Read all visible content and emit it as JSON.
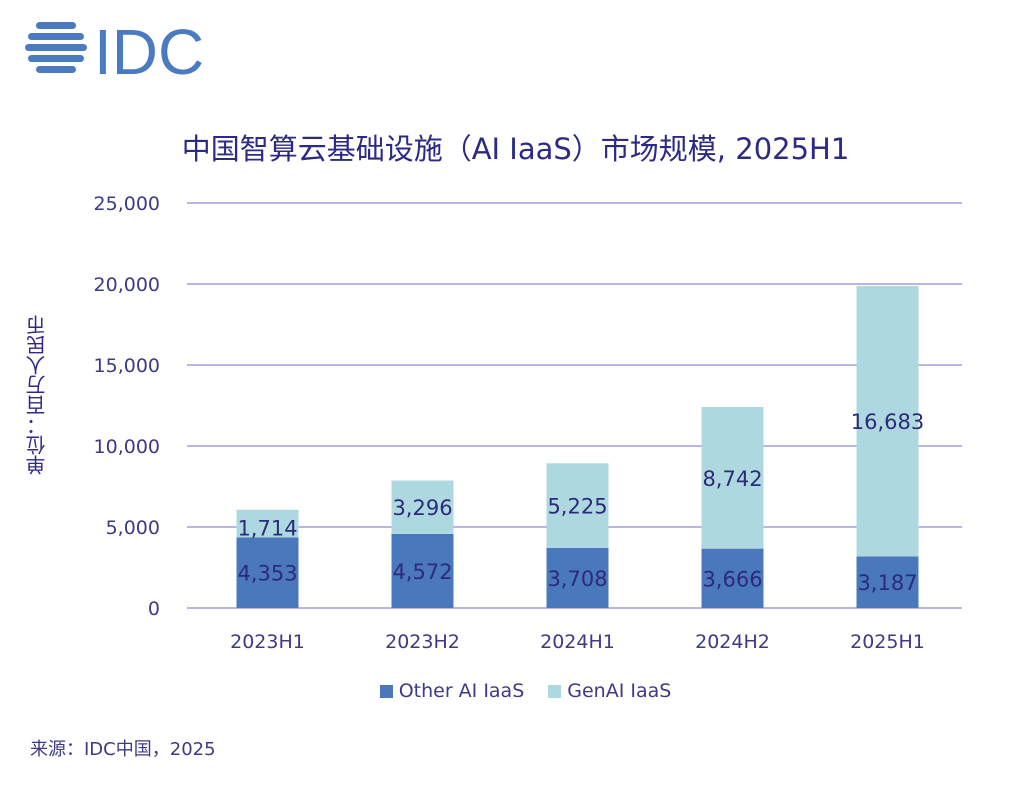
{
  "logo": {
    "text": "IDC",
    "color": "#4a7ac0"
  },
  "chart_data": {
    "type": "bar",
    "stacked": true,
    "title": "中国智算云基础设施（AI IaaS）市场规模, 2025H1",
    "ylabel": "单位：百万人民币",
    "xlabel": "",
    "ylim": [
      0,
      25000
    ],
    "yticks": [
      0,
      5000,
      10000,
      15000,
      20000,
      25000
    ],
    "ytick_labels": [
      "0",
      "5,000",
      "10,000",
      "15,000",
      "20,000",
      "25,000"
    ],
    "grid": true,
    "categories": [
      "2023H1",
      "2023H2",
      "2024H1",
      "2024H2",
      "2025H1"
    ],
    "series": [
      {
        "name": "Other AI IaaS",
        "color": "#4a78bd",
        "values": [
          4353,
          4572,
          3708,
          3666,
          3187
        ],
        "labels": [
          "4,353",
          "4,572",
          "3,708",
          "3,666",
          "3,187"
        ]
      },
      {
        "name": "GenAI IaaS",
        "color": "#aed8e0",
        "values": [
          1714,
          3296,
          5225,
          8742,
          16683
        ],
        "labels": [
          "1,714",
          "3,296",
          "5,225",
          "8,742",
          "16,683"
        ]
      }
    ],
    "legend": "bottom"
  },
  "source": "来源：IDC中国，2025"
}
